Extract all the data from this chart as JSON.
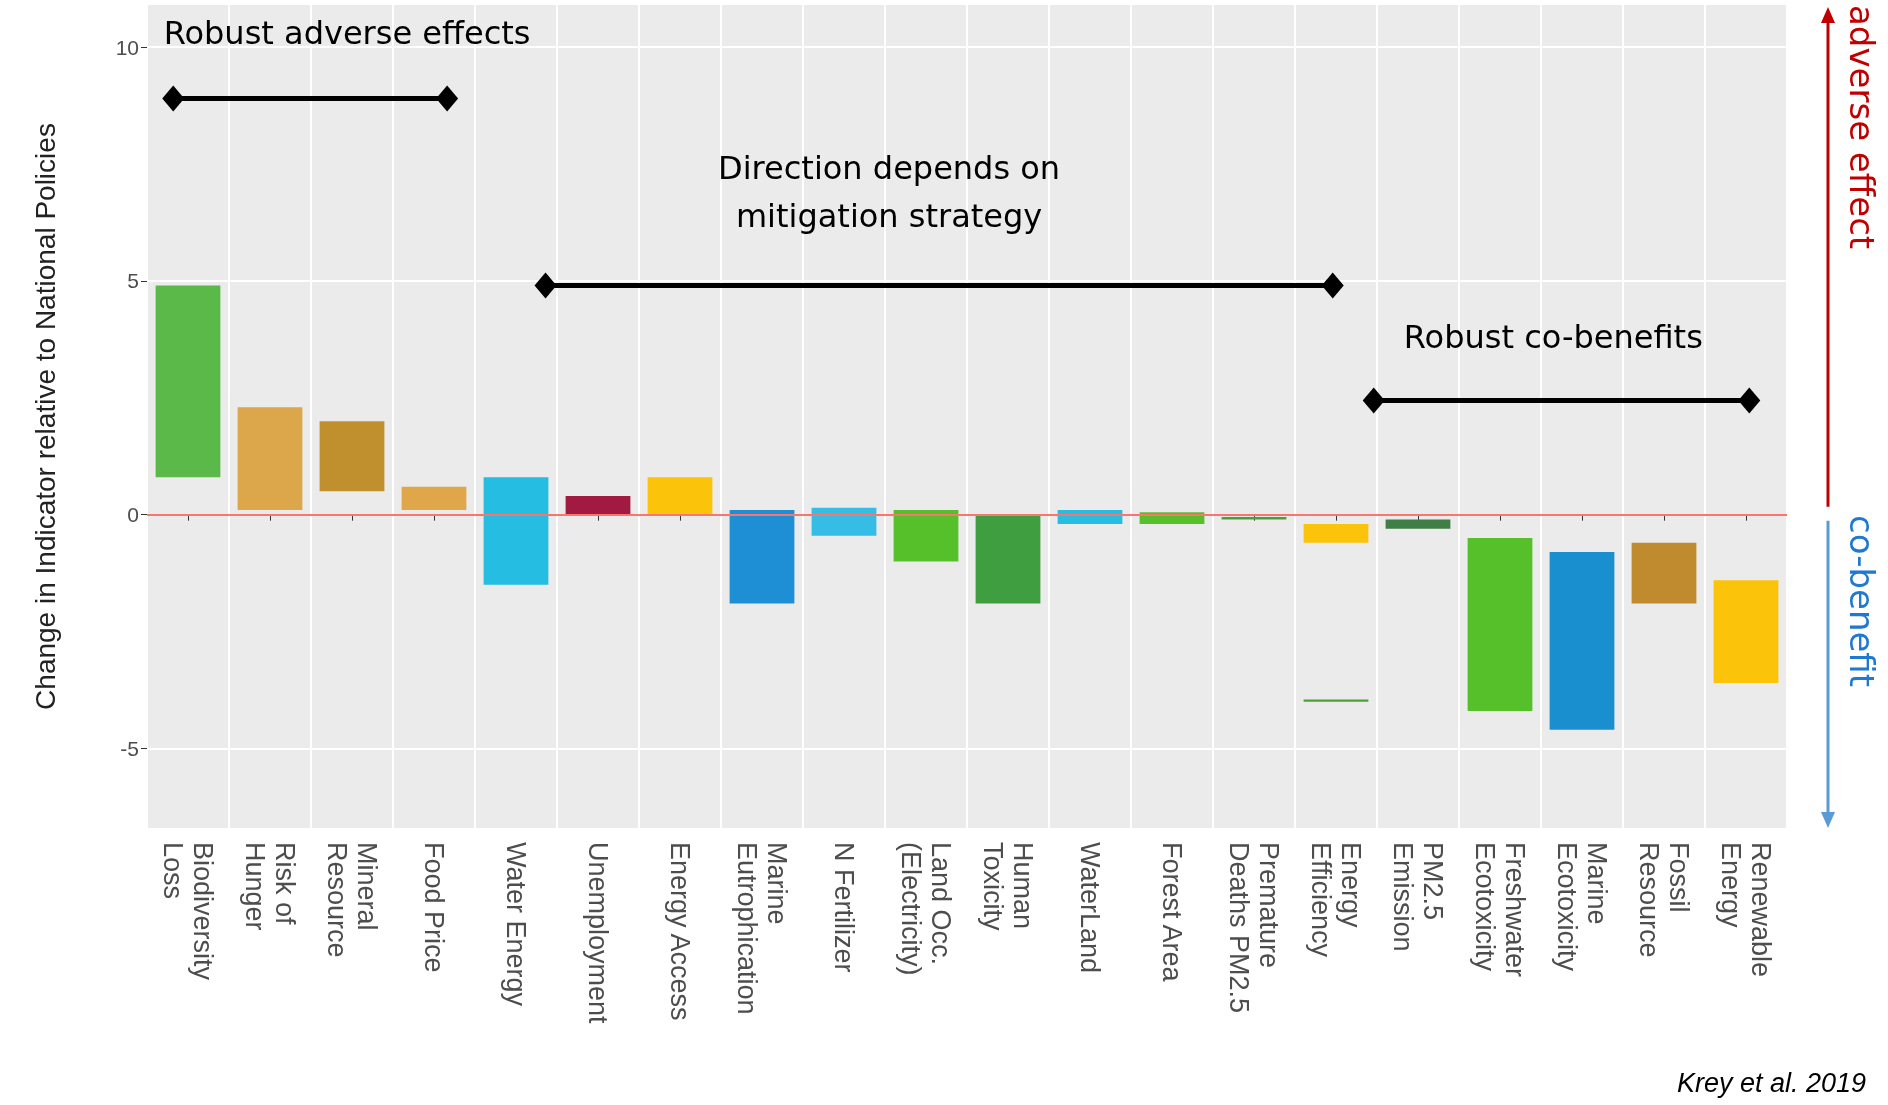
{
  "chart_data": {
    "type": "bar",
    "ylabel": "Change in Indicator relative to National Policies",
    "categories": [
      "Biodiversity\nLoss",
      "Risk of\nHunger",
      "Mineral\nResource",
      "Food Price",
      "Water Energy",
      "Unemployment",
      "Energy Access",
      "Marine\nEutrophication",
      "N Fertilizer",
      "Land Occ.\n(Electricity)",
      "Human\nToxicity",
      "WaterLand",
      "Forest Area",
      "Premature\nDeaths PM2.5",
      "Energy\nEfficiency",
      "PM2.5\nEmission",
      "Freshwater\nEcotoxicity",
      "Marine\nEcotoxicity",
      "Fossil\nResource",
      "Renewable\nEnergy"
    ],
    "series": [
      {
        "base": [
          0.8,
          0.1,
          0.5,
          0.1,
          -1.5,
          0,
          0,
          -1.9,
          -0.45,
          -1.0,
          -1.9,
          -0.2,
          -0.2,
          -0.1,
          -0.6,
          -0.3,
          -4.2,
          -4.6,
          -1.9,
          -3.6
        ],
        "values": [
          4.1,
          2.2,
          1.5,
          0.5,
          2.3,
          0.4,
          0.8,
          2.0,
          0.6,
          1.1,
          1.9,
          0.3,
          0.25,
          0.05,
          0.4,
          0.2,
          3.7,
          3.8,
          1.3,
          2.2
        ],
        "colors": [
          "#5ab948",
          "#dca64a",
          "#c0902e",
          "#dfa74a",
          "#26bde2",
          "#a21942",
          "#fcc30b",
          "#1e8fd5",
          "#35bde6",
          "#56c02b",
          "#3f9e3f",
          "#26bde2",
          "#56c02b",
          "#4c9f38",
          "#fcc30b",
          "#3f7e44",
          "#56c02b",
          "#1a8fd0",
          "#bf8b2e",
          "#fcc30b"
        ]
      },
      {
        "base": [
          null,
          null,
          null,
          null,
          null,
          null,
          null,
          null,
          null,
          null,
          null,
          null,
          null,
          null,
          -4.0,
          null,
          null,
          null,
          null,
          null
        ],
        "values": [
          null,
          null,
          null,
          null,
          null,
          null,
          null,
          null,
          null,
          null,
          null,
          null,
          null,
          null,
          0.05,
          null,
          null,
          null,
          null,
          null
        ],
        "color": "#4c9f38"
      }
    ],
    "ylim": [
      -6.7,
      10.9
    ],
    "yticks": [
      -5,
      0,
      5,
      10
    ],
    "grid": true,
    "ref_lines": [
      {
        "axis": "y",
        "value": 0,
        "color": "#f8766d"
      }
    ],
    "annotations": [
      "Robust adverse effects",
      "Direction depends on mitigation strategy",
      "Robust co-benefits",
      "adverse effect",
      "co-benefit",
      "Krey et al. 2019"
    ]
  }
}
